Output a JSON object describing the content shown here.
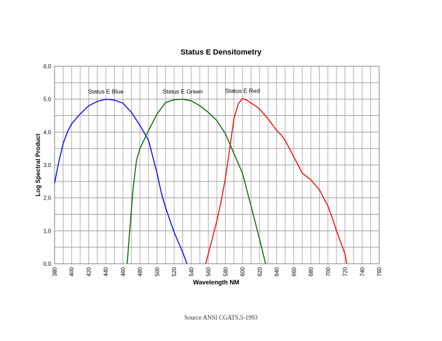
{
  "chart_data": {
    "type": "line",
    "title": "Status E Densitometry",
    "xlabel": "Wavelength NM",
    "ylabel": "Log Spectral Product",
    "xlim": [
      380,
      760
    ],
    "ylim": [
      0,
      6
    ],
    "x_ticks": [
      "380",
      "400",
      "420",
      "440",
      "460",
      "480",
      "500",
      "520",
      "540",
      "560",
      "580",
      "600",
      "620",
      "640",
      "660",
      "680",
      "700",
      "720",
      "740",
      "760"
    ],
    "y_ticks": [
      "0.0",
      "1.0",
      "2.0",
      "3.0",
      "4.0",
      "5.0",
      "6.0"
    ],
    "grid": true,
    "series": [
      {
        "name": "Status E Blue",
        "color": "#0000ff",
        "x": [
          380,
          385,
          390,
          395,
          400,
          410,
          420,
          430,
          440,
          450,
          460,
          470,
          480,
          490,
          500,
          505,
          510,
          520,
          530,
          535
        ],
        "y": [
          2.45,
          3.1,
          3.65,
          4.0,
          4.25,
          4.55,
          4.8,
          4.93,
          5.0,
          4.97,
          4.88,
          4.6,
          4.2,
          3.75,
          2.75,
          2.15,
          1.7,
          0.95,
          0.35,
          0.0
        ]
      },
      {
        "name": "Status E Green",
        "color": "#006400",
        "x": [
          465,
          468,
          472,
          476,
          480,
          490,
          500,
          510,
          520,
          530,
          540,
          550,
          560,
          570,
          580,
          590,
          600,
          610,
          620,
          627
        ],
        "y": [
          0.0,
          1.0,
          2.3,
          3.15,
          3.5,
          4.05,
          4.55,
          4.9,
          4.98,
          5.0,
          4.95,
          4.8,
          4.6,
          4.35,
          3.95,
          3.35,
          2.75,
          1.75,
          0.75,
          0.0
        ]
      },
      {
        "name": "Status E Red",
        "color": "#ff0000",
        "x": [
          557,
          560,
          565,
          570,
          575,
          580,
          585,
          590,
          595,
          600,
          605,
          610,
          615,
          620,
          630,
          640,
          645,
          650,
          660,
          665,
          670,
          680,
          690,
          700,
          705,
          710,
          715,
          720,
          722
        ],
        "y": [
          0.0,
          0.3,
          0.8,
          1.3,
          1.9,
          2.6,
          3.5,
          4.4,
          4.85,
          5.02,
          4.97,
          4.88,
          4.8,
          4.7,
          4.4,
          4.05,
          3.92,
          3.75,
          3.25,
          3.0,
          2.75,
          2.55,
          2.25,
          1.75,
          1.4,
          1.0,
          0.65,
          0.3,
          0.0
        ]
      }
    ]
  },
  "source_text": "Source ANSI CGATS.5-1993"
}
